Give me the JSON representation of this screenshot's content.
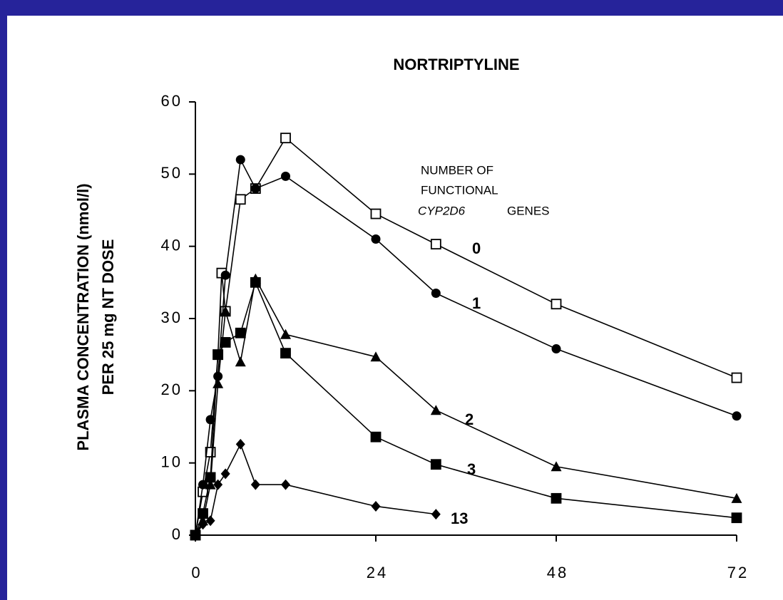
{
  "chart_data": {
    "type": "line",
    "title": "NORTRIPTYLINE",
    "y_label": [
      "PLASMA CONCENTRATION (nmol/l)",
      "PER 25 mg NT DOSE"
    ],
    "legend_title": [
      "NUMBER OF",
      "FUNCTIONAL",
      "CYP2D6",
      "GENES"
    ],
    "xlim": [
      0,
      72
    ],
    "xticks": [
      0,
      24,
      48,
      72
    ],
    "ylim": [
      0,
      60
    ],
    "yticks": [
      0,
      10,
      20,
      30,
      40,
      50,
      60
    ],
    "series": [
      {
        "name": "0",
        "color": "#000000",
        "marker": "open-square",
        "x": [
          0,
          1,
          2,
          3,
          3.5,
          4,
          6,
          8,
          12,
          24,
          32,
          48,
          72
        ],
        "values": [
          0,
          6,
          11.5,
          25,
          36.3,
          31,
          46.5,
          48,
          55,
          44.5,
          40.3,
          32,
          21.8
        ]
      },
      {
        "name": "1",
        "color": "#000000",
        "marker": "circle",
        "x": [
          0,
          1,
          2,
          3,
          4,
          6,
          8,
          12,
          24,
          32,
          48,
          72
        ],
        "values": [
          0,
          7,
          16,
          22,
          36,
          52,
          48,
          49.7,
          41,
          33.5,
          25.8,
          16.5
        ]
      },
      {
        "name": "2",
        "color": "#000000",
        "marker": "triangle",
        "x": [
          0,
          1,
          2,
          3,
          4,
          6,
          8,
          12,
          24,
          32,
          48,
          72
        ],
        "values": [
          0,
          2,
          7,
          21,
          31,
          24,
          35.5,
          27.8,
          24.7,
          17.3,
          9.5,
          5.1
        ]
      },
      {
        "name": "3",
        "color": "#000000",
        "marker": "square",
        "x": [
          0,
          1,
          2,
          3,
          4,
          6,
          8,
          12,
          24,
          32,
          48,
          72
        ],
        "values": [
          0,
          3,
          8,
          25,
          26.7,
          28,
          35,
          25.2,
          13.6,
          9.8,
          5.1,
          2.4
        ]
      },
      {
        "name": "13",
        "color": "#000000",
        "marker": "diamond",
        "x": [
          0,
          1,
          2,
          3,
          4,
          6,
          8,
          12,
          24,
          32
        ],
        "values": [
          0,
          1.5,
          2,
          7,
          8.5,
          12.6,
          7,
          7,
          4,
          2.9
        ]
      }
    ]
  }
}
